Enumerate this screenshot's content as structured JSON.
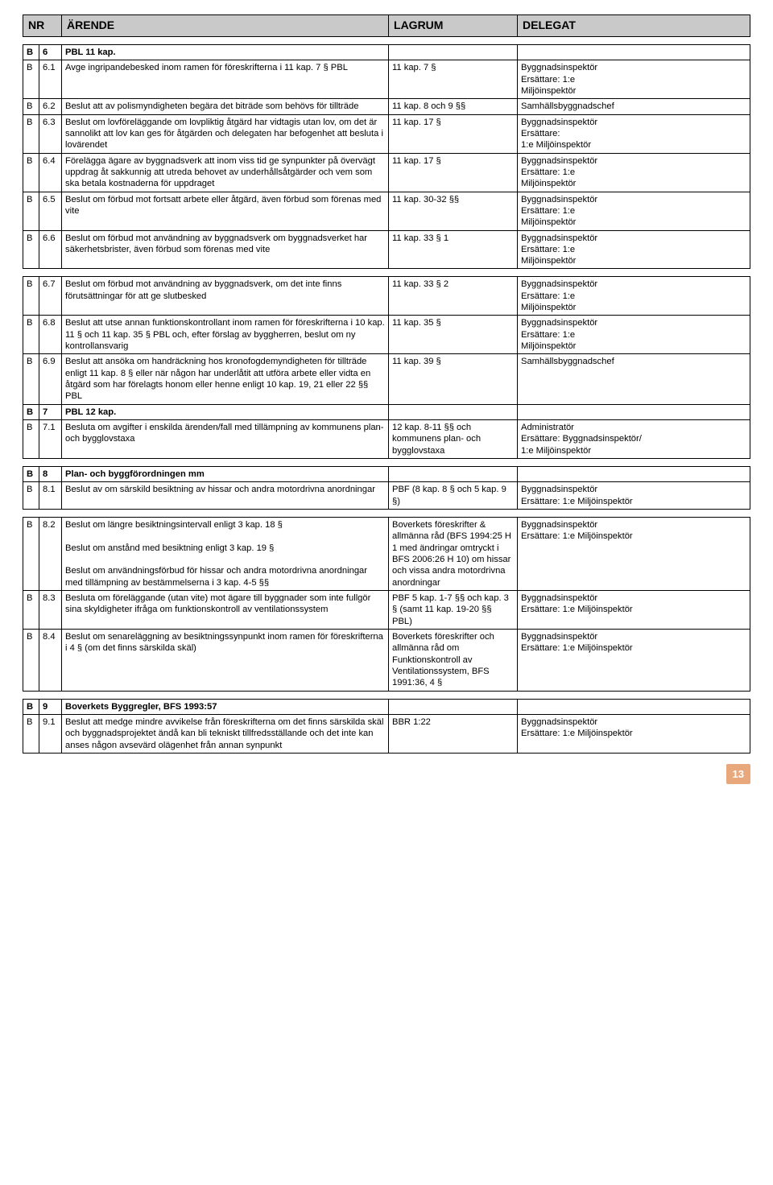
{
  "header": {
    "nr": "NR",
    "arende": "ÄRENDE",
    "lagrum": "LAGRUM",
    "delegat": "DELEGAT"
  },
  "t1": [
    {
      "c1": "B",
      "c2": "6",
      "arende": "PBL 11 kap.",
      "lagrum": "",
      "delegat": "",
      "bold": true
    },
    {
      "c1": "B",
      "c2": "6.1",
      "arende": "Avge ingripandebesked inom ramen för föreskrifterna i 11 kap. 7 § PBL",
      "lagrum": "11 kap. 7 §",
      "delegat": "Byggnadsinspektör\nErsättare: 1:e\nMiljöinspektör"
    },
    {
      "c1": "B",
      "c2": "6.2",
      "arende": "Beslut att av polismyndigheten begära det biträde som behövs för tillträde",
      "lagrum": "11 kap. 8 och 9 §§",
      "delegat": "Samhällsbyggnadschef"
    },
    {
      "c1": "B",
      "c2": "6.3",
      "arende": "Beslut om lovföreläggande om lovpliktig åtgärd har vidtagis utan lov, om det är sannolikt att lov kan ges för åtgärden och delegaten har befogenhet att besluta i lovärendet",
      "lagrum": "11 kap. 17 §",
      "delegat": "Byggnadsinspektör\nErsättare:\n1:e Miljöinspektör"
    },
    {
      "c1": "B",
      "c2": "6.4",
      "arende": "Förelägga ägare av byggnadsverk att inom viss tid ge synpunkter på övervägt uppdrag åt sakkunnig att utreda behovet av underhållsåtgärder och vem som ska betala kostnaderna för uppdraget",
      "lagrum": "11 kap. 17 §",
      "delegat": "Byggnadsinspektör\nErsättare: 1:e\nMiljöinspektör"
    },
    {
      "c1": "B",
      "c2": "6.5",
      "arende": "Beslut om förbud mot fortsatt arbete eller åtgärd, även förbud som förenas med vite",
      "lagrum": "11 kap. 30-32 §§",
      "delegat": "Byggnadsinspektör\nErsättare: 1:e\nMiljöinspektör"
    },
    {
      "c1": "B",
      "c2": "6.6",
      "arende": "Beslut om förbud mot användning av byggnadsverk om byggnadsverket har säkerhetsbrister, även förbud som förenas med vite",
      "lagrum": "11 kap. 33 § 1",
      "delegat": "Byggnadsinspektör\nErsättare: 1:e\nMiljöinspektör"
    }
  ],
  "t2": [
    {
      "c1": "B",
      "c2": "6.7",
      "arende": "Beslut om förbud mot användning av byggnadsverk, om det inte finns förutsättningar för att ge slutbesked",
      "lagrum": "11 kap. 33 § 2",
      "delegat": "Byggnadsinspektör\nErsättare: 1:e\nMiljöinspektör"
    },
    {
      "c1": "B",
      "c2": "6.8",
      "arende": "Beslut att utse annan funktionskontrollant inom ramen för föreskrifterna i 10 kap. 11 § och 11 kap. 35 § PBL och, efter förslag av byggherren, beslut om ny kontrollansvarig",
      "lagrum": "11 kap. 35 §",
      "delegat": "Byggnadsinspektör\nErsättare: 1:e\nMiljöinspektör"
    },
    {
      "c1": "B",
      "c2": "6.9",
      "arende": "Beslut att ansöka om handräckning hos kronofogdemyndigheten för tillträde enligt 11 kap. 8 § eller när någon har underlåtit att utföra arbete eller vidta en åtgärd som har förelagts honom eller henne enligt 10 kap. 19, 21 eller 22 §§ PBL",
      "lagrum": "11 kap. 39 §",
      "delegat": "Samhällsbyggnadschef"
    },
    {
      "c1": "B",
      "c2": "7",
      "arende": "PBL 12 kap.",
      "lagrum": "",
      "delegat": "",
      "bold": true
    },
    {
      "c1": "B",
      "c2": "7.1",
      "arende": "Besluta om avgifter i enskilda ärenden/fall med tillämpning av kommunens plan- och bygglovstaxa",
      "lagrum": "12 kap. 8-11 §§ och kommunens plan- och bygglovstaxa",
      "delegat": "Administratör\nErsättare: Byggnadsinspektör/\n1:e Miljöinspektör"
    }
  ],
  "t3": [
    {
      "c1": "B",
      "c2": "8",
      "arende": "Plan- och byggförordningen mm",
      "lagrum": "",
      "delegat": "",
      "bold": true
    },
    {
      "c1": "B",
      "c2": "8.1",
      "arende": "Beslut av om särskild besiktning av hissar och andra motordrivna anordningar",
      "lagrum": "PBF (8 kap. 8 § och 5 kap. 9 §)",
      "delegat": "Byggnadsinspektör\nErsättare: 1:e Miljöinspektör"
    }
  ],
  "t4": [
    {
      "c1": "B",
      "c2": "8.2",
      "arende": "Beslut om längre besiktningsintervall enligt 3 kap. 18 §\n\nBeslut om anstånd med besiktning enligt 3 kap. 19 §\n\nBeslut om användningsförbud för hissar och andra motordrivna anordningar med tillämpning av bestämmelserna i 3 kap. 4-5 §§",
      "lagrum": "Boverkets föreskrifter & allmänna råd (BFS 1994:25 H 1 med ändringar omtryckt i BFS 2006:26 H 10) om hissar och vissa andra motordrivna anordningar",
      "delegat": "Byggnadsinspektör\nErsättare: 1:e Miljöinspektör"
    },
    {
      "c1": "B",
      "c2": "8.3",
      "arende": "Besluta om föreläggande (utan vite) mot ägare till byggnader som inte fullgör sina skyldigheter ifråga om funktionskontroll av ventilationssystem",
      "lagrum": "PBF 5 kap. 1-7 §§ och kap. 3 § (samt 11 kap. 19-20 §§ PBL)",
      "delegat": "Byggnadsinspektör\nErsättare: 1:e Miljöinspektör"
    },
    {
      "c1": "B",
      "c2": "8.4",
      "arende": "Beslut om senareläggning av besiktningssynpunkt inom ramen för föreskrifterna i 4 § (om det finns särskilda skäl)",
      "lagrum": "Boverkets föreskrifter och allmänna råd om Funktionskontroll av Ventilationssystem, BFS 1991:36, 4 §",
      "delegat": "Byggnadsinspektör\nErsättare: 1:e Miljöinspektör"
    }
  ],
  "t5": [
    {
      "c1": "B",
      "c2": "9",
      "arende": "Boverkets Byggregler, BFS 1993:57",
      "lagrum": "",
      "delegat": "",
      "bold": true
    },
    {
      "c1": "B",
      "c2": "9.1",
      "arende": "Beslut att medge mindre avvikelse från föreskrifterna om det finns särskilda skäl och byggnadsprojektet ändå kan bli tekniskt tillfredsställande och det inte kan anses någon avsevärd olägenhet från annan synpunkt",
      "lagrum": "BBR 1:22",
      "delegat": "Byggnadsinspektör\nErsättare: 1:e Miljöinspektör"
    }
  ],
  "page_num": "13"
}
